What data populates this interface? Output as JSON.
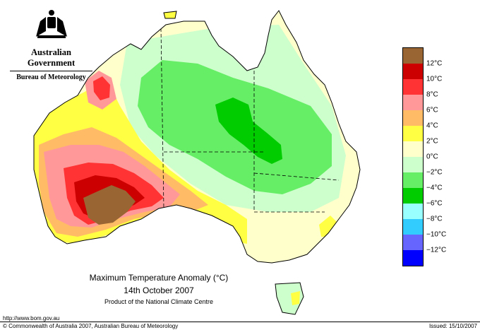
{
  "branding": {
    "government": "Australian Government",
    "bureau": "Bureau of Meteorology"
  },
  "map": {
    "title_line1": "Maximum Temperature Anomaly (°C)",
    "title_line2": "14th October 2007",
    "title_line3": "Product of the National Climate Centre",
    "url": "http://www.bom.gov.au",
    "copyright": "© Commonwealth of Australia 2007, Australian Bureau of Meteorology",
    "issued": "Issued: 15/10/2007"
  },
  "legend": {
    "swatches": [
      {
        "color": "#996633"
      },
      {
        "color": "#cc0000"
      },
      {
        "color": "#ff3333"
      },
      {
        "color": "#ff9999"
      },
      {
        "color": "#ffbb66"
      },
      {
        "color": "#ffff44"
      },
      {
        "color": "#ffffcc"
      },
      {
        "color": "#ccffcc"
      },
      {
        "color": "#66ee66"
      },
      {
        "color": "#00cc00"
      },
      {
        "color": "#99ffff"
      },
      {
        "color": "#33ccff"
      },
      {
        "color": "#6666ff"
      },
      {
        "color": "#0000ff"
      }
    ],
    "labels": [
      "12°C",
      "10°C",
      "8°C",
      "6°C",
      "4°C",
      "2°C",
      "0°C",
      "−2°C",
      "−4°C",
      "−6°C",
      "−8°C",
      "−10°C",
      "−12°C"
    ]
  }
}
